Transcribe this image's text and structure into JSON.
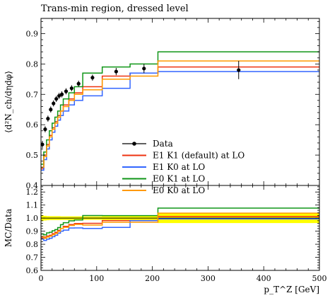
{
  "chart_data": [
    {
      "type": "line",
      "panel": "main",
      "title": "Trans-min region, dressed level",
      "ylabel": "⟨d²N_ch/dηdφ⟩",
      "xlim": [
        0,
        500
      ],
      "ylim": [
        0.4,
        0.95
      ],
      "yticks": [
        "0.4",
        "0.5",
        "0.6",
        "0.7",
        "0.8",
        "0.9"
      ],
      "grid": false,
      "legend_position": "lower-right",
      "bin_edges": [
        0,
        5,
        10,
        15,
        20,
        25,
        30,
        35,
        40,
        50,
        60,
        75,
        110,
        160,
        210,
        500
      ],
      "data": {
        "name": "Data",
        "x": [
          2.5,
          7.5,
          12.5,
          17.5,
          22.5,
          27.5,
          32.5,
          37.5,
          45,
          55,
          67.5,
          92.5,
          135,
          185,
          355
        ],
        "y": [
          0.535,
          0.585,
          0.62,
          0.65,
          0.67,
          0.685,
          0.695,
          0.7,
          0.71,
          0.72,
          0.735,
          0.755,
          0.775,
          0.785,
          0.78
        ],
        "yerr": [
          0.012,
          0.01,
          0.01,
          0.01,
          0.01,
          0.01,
          0.01,
          0.01,
          0.01,
          0.01,
          0.01,
          0.01,
          0.012,
          0.015,
          0.03
        ]
      },
      "series": [
        {
          "name": "E1 K1 (default) at LO",
          "color": "#ee3311",
          "values": [
            0.455,
            0.5,
            0.535,
            0.565,
            0.59,
            0.61,
            0.63,
            0.645,
            0.665,
            0.685,
            0.705,
            0.725,
            0.76,
            0.77,
            0.79
          ]
        },
        {
          "name": "E1 K0 at LO",
          "color": "#3366ff",
          "values": [
            0.45,
            0.485,
            0.52,
            0.55,
            0.575,
            0.595,
            0.615,
            0.63,
            0.645,
            0.665,
            0.68,
            0.695,
            0.72,
            0.77,
            0.775
          ]
        },
        {
          "name": "E0 K1 at LO",
          "color": "#109618",
          "values": [
            0.47,
            0.51,
            0.55,
            0.58,
            0.605,
            0.625,
            0.645,
            0.665,
            0.685,
            0.705,
            0.725,
            0.77,
            0.79,
            0.8,
            0.84
          ]
        },
        {
          "name": "E0 K0 at LO",
          "color": "#ff9900",
          "values": [
            0.46,
            0.495,
            0.53,
            0.56,
            0.585,
            0.605,
            0.625,
            0.645,
            0.66,
            0.68,
            0.7,
            0.715,
            0.75,
            0.76,
            0.81
          ]
        }
      ]
    },
    {
      "type": "line",
      "panel": "ratio",
      "ylabel": "MC/Data",
      "xlabel": "p_T^Z [GeV]",
      "xlim": [
        0,
        500
      ],
      "ylim": [
        0.6,
        1.25
      ],
      "yticks": [
        "0.6",
        "0.7",
        "0.8",
        "0.9",
        "1.0",
        "1.1",
        "1.2"
      ],
      "xticks": [
        "0",
        "100",
        "200",
        "300",
        "400",
        "500"
      ],
      "band_color": "#ffff00",
      "band_halfwidth": [
        0.022,
        0.018,
        0.016,
        0.015,
        0.015,
        0.015,
        0.015,
        0.014,
        0.014,
        0.014,
        0.014,
        0.013,
        0.015,
        0.02,
        0.038
      ],
      "series": [
        {
          "name": "E1 K1 (default) at LO",
          "color": "#ee3311",
          "values": [
            0.85,
            0.855,
            0.863,
            0.869,
            0.881,
            0.891,
            0.906,
            0.921,
            0.937,
            0.951,
            0.959,
            0.96,
            0.981,
            0.981,
            1.013
          ]
        },
        {
          "name": "E1 K0 at LO",
          "color": "#3366ff",
          "values": [
            0.841,
            0.829,
            0.839,
            0.846,
            0.858,
            0.869,
            0.885,
            0.9,
            0.908,
            0.924,
            0.925,
            0.921,
            0.929,
            0.981,
            0.994
          ]
        },
        {
          "name": "E0 K1 at LO",
          "color": "#109618",
          "values": [
            0.878,
            0.872,
            0.887,
            0.892,
            0.903,
            0.912,
            0.928,
            0.95,
            0.965,
            0.979,
            0.986,
            1.02,
            1.019,
            1.019,
            1.077
          ]
        },
        {
          "name": "E0 K0 at LO",
          "color": "#ff9900",
          "values": [
            0.86,
            0.846,
            0.855,
            0.862,
            0.873,
            0.883,
            0.899,
            0.921,
            0.93,
            0.944,
            0.952,
            0.947,
            0.968,
            0.968,
            1.038
          ]
        }
      ]
    }
  ]
}
